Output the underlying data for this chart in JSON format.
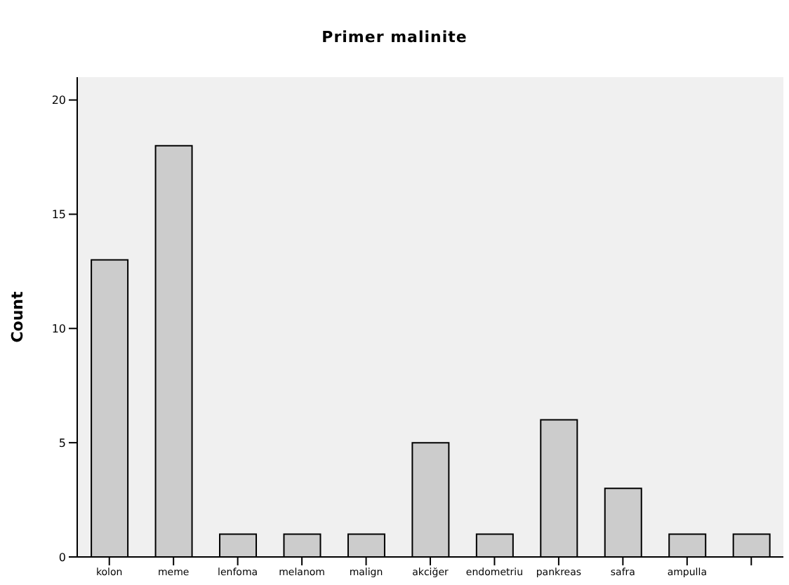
{
  "chart_data": {
    "type": "bar",
    "title": "Primer malinite",
    "ylabel": "Count",
    "categories": [
      "kolon",
      "meme",
      "lenfoma",
      "melanom",
      "malign",
      "akciğer",
      "endometriu",
      "pankreas",
      "safra",
      "ampulla",
      null
    ],
    "values": [
      13,
      18,
      1,
      1,
      1,
      5,
      1,
      6,
      3,
      1,
      1
    ],
    "color": "#cccccc",
    "ylim": [
      0,
      21
    ],
    "yticks": [
      0,
      5,
      10,
      15,
      20
    ],
    "grid": false
  }
}
